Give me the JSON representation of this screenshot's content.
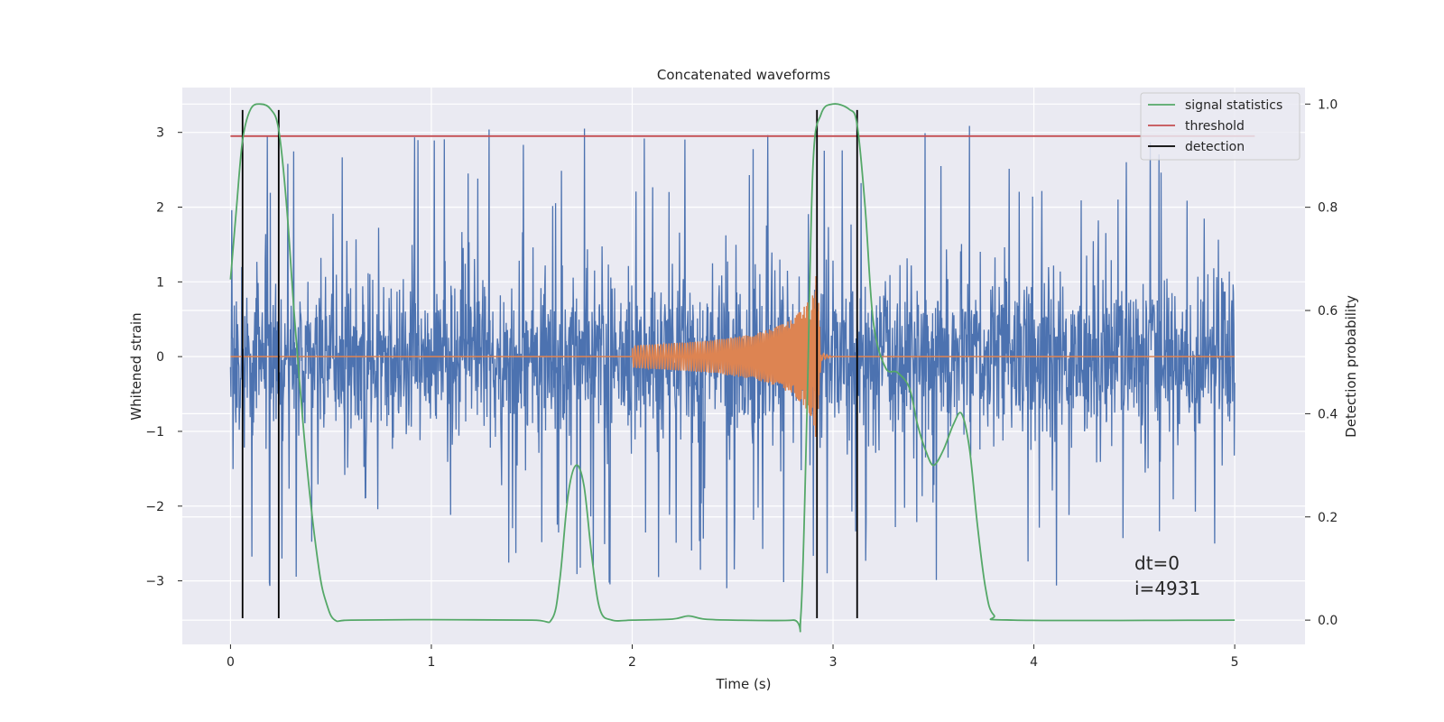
{
  "chart_data": {
    "type": "line",
    "title": "Concatenated waveforms",
    "xlabel": "Time (s)",
    "ylabel": "Whitened strain",
    "y2label": "Detection probability",
    "xlim": [
      -0.24,
      5.35
    ],
    "ylim": [
      -3.85,
      3.6
    ],
    "y2lim": [
      -0.047,
      1.032
    ],
    "xticks": [
      0,
      1,
      2,
      3,
      4,
      5
    ],
    "yticks": [
      -3,
      -2,
      -1,
      0,
      1,
      2,
      3
    ],
    "y2ticks": [
      0.0,
      0.2,
      0.4,
      0.6,
      0.8,
      1.0
    ],
    "grid": true,
    "legend_position": "top-right",
    "colors": {
      "strain": "#4c72b0",
      "waveform": "#dd8452",
      "signal_statistics": "#55a868",
      "threshold": "#c44e52",
      "detection": "#000000",
      "plot_bg": "#eaeaf2",
      "grid": "#ffffff"
    },
    "legend": [
      {
        "label": "signal statistics",
        "color": "#55a868"
      },
      {
        "label": "threshold",
        "color": "#c44e52"
      },
      {
        "label": "detection",
        "color": "#000000"
      }
    ],
    "strain_noise": {
      "x_range": [
        0,
        5
      ],
      "samples": 2400,
      "typical_peak": 1.2,
      "max_peak": 3.2
    },
    "waveform": {
      "x": [
        0.0,
        2.0,
        2.0,
        2.2,
        2.4,
        2.6,
        2.7,
        2.8,
        2.85,
        2.9,
        2.92,
        2.94,
        3.0,
        5.0
      ],
      "envelope": [
        0,
        0,
        0.15,
        0.18,
        0.22,
        0.3,
        0.38,
        0.5,
        0.65,
        0.85,
        1.2,
        0.05,
        0,
        0
      ]
    },
    "threshold": {
      "x": [
        0,
        5.1
      ],
      "y": 2.95
    },
    "signal_statistics": {
      "axis": "right",
      "x": [
        0.0,
        0.03,
        0.06,
        0.1,
        0.15,
        0.2,
        0.24,
        0.28,
        0.32,
        0.38,
        0.44,
        0.48,
        0.52,
        0.6,
        1.0,
        1.5,
        1.6,
        1.64,
        1.68,
        1.72,
        1.76,
        1.8,
        1.84,
        1.9,
        2.0,
        2.2,
        2.28,
        2.36,
        2.5,
        2.8,
        2.84,
        2.87,
        2.9,
        2.94,
        3.0,
        3.08,
        3.12,
        3.16,
        3.2,
        3.26,
        3.32,
        3.38,
        3.42,
        3.46,
        3.5,
        3.55,
        3.6,
        3.64,
        3.68,
        3.72,
        3.76,
        3.8,
        3.9,
        5.0
      ],
      "y": [
        0.66,
        0.8,
        0.93,
        0.99,
        1.0,
        0.99,
        0.95,
        0.8,
        0.58,
        0.3,
        0.1,
        0.03,
        0.0,
        0.0,
        0.001,
        0.0,
        0.002,
        0.08,
        0.24,
        0.3,
        0.26,
        0.12,
        0.02,
        0.0,
        0.0,
        0.002,
        0.008,
        0.002,
        0.0,
        0.0,
        0.01,
        0.4,
        0.88,
        0.98,
        1.0,
        0.99,
        0.96,
        0.8,
        0.58,
        0.49,
        0.48,
        0.45,
        0.38,
        0.33,
        0.3,
        0.33,
        0.38,
        0.4,
        0.33,
        0.18,
        0.06,
        0.01,
        0.0,
        0.0
      ]
    },
    "detections": [
      0.06,
      0.24,
      2.92,
      3.12
    ],
    "detection_range": [
      -3.5,
      3.3
    ],
    "annotations": [
      "dt=0",
      "i=4931"
    ]
  }
}
